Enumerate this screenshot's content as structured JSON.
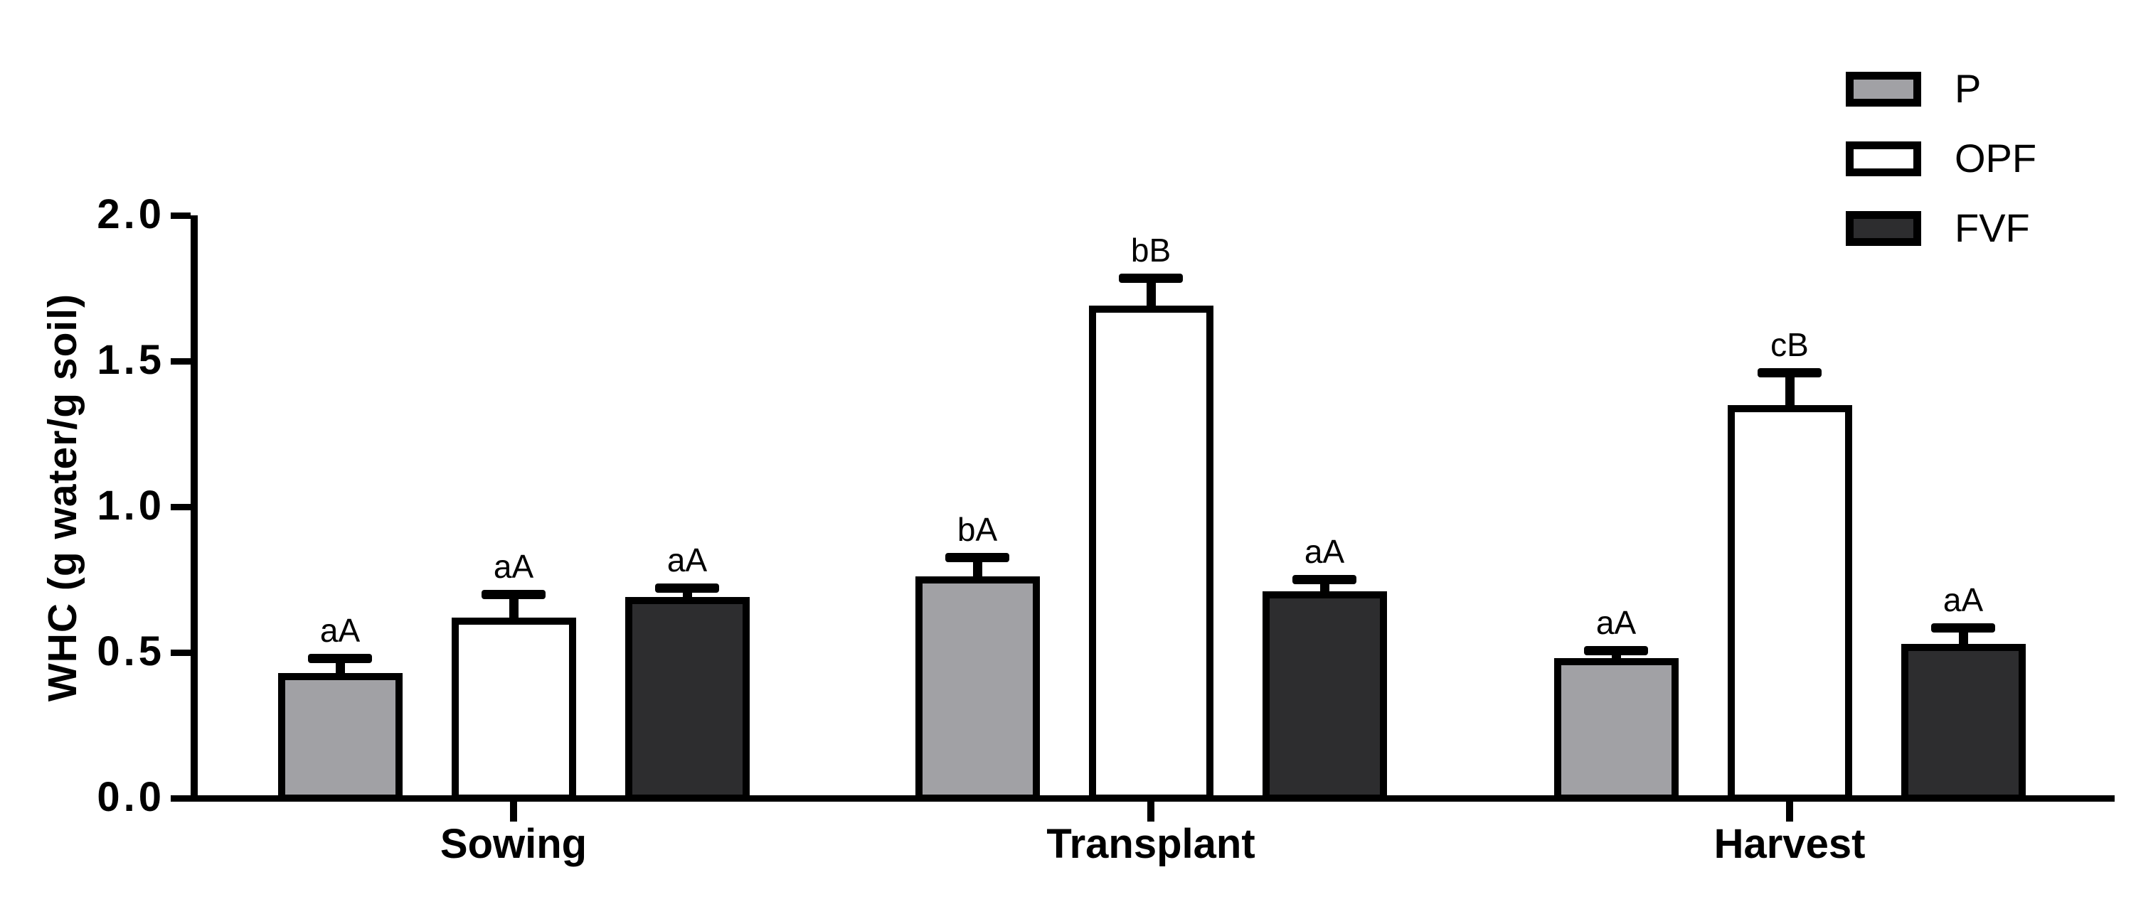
{
  "chart_data": {
    "type": "bar",
    "title": "",
    "ylabel": "WHC (g water/g soil)",
    "xlabel": "",
    "categories": [
      "Sowing",
      "Transplant",
      "Harvest"
    ],
    "ylim": [
      0,
      2.0
    ],
    "ytick_values": [
      0,
      0.5,
      1.0,
      1.5,
      2.0
    ],
    "ytick_labels": [
      "0.0",
      "0.5",
      "1.0",
      "1.5",
      "2.0"
    ],
    "grid": "off",
    "legend_position": "top-right",
    "series": [
      {
        "name": "P",
        "fill": "#a1a1a5",
        "values": [
          0.43,
          0.76,
          0.48
        ],
        "errors": [
          0.05,
          0.065,
          0.025
        ],
        "letters": [
          "aA",
          "bA",
          "aA"
        ]
      },
      {
        "name": "OPF",
        "fill": "#ffffff",
        "values": [
          0.62,
          1.69,
          1.35
        ],
        "errors": [
          0.08,
          0.095,
          0.11
        ],
        "letters": [
          "aA",
          "bB",
          "cB"
        ]
      },
      {
        "name": "FVF",
        "fill": "#2d2d2f",
        "values": [
          0.69,
          0.71,
          0.53
        ],
        "errors": [
          0.03,
          0.04,
          0.055
        ],
        "letters": [
          "aA",
          "aA",
          "aA"
        ]
      }
    ],
    "colors": {
      "axis": "#000000",
      "text": "#000000",
      "background": "#ffffff"
    }
  }
}
